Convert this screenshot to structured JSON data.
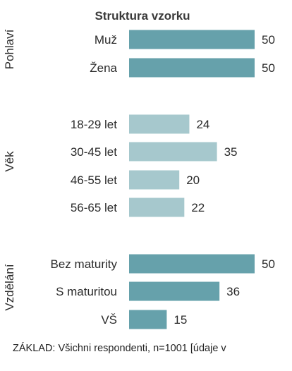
{
  "chart_data": {
    "type": "bar",
    "orientation": "horizontal",
    "title": "Struktura vzorku",
    "groups": [
      {
        "label": "Pohlaví",
        "color": "#66a1ab",
        "items": [
          {
            "category": "Muž",
            "value": 50
          },
          {
            "category": "Žena",
            "value": 50
          }
        ]
      },
      {
        "label": "Věk",
        "color": "#a6c8cd",
        "items": [
          {
            "category": "18-29 let",
            "value": 24
          },
          {
            "category": "30-45 let",
            "value": 35
          },
          {
            "category": "46-55 let",
            "value": 20
          },
          {
            "category": "56-65 let",
            "value": 22
          }
        ]
      },
      {
        "label": "Vzdělání",
        "color": "#66a1ab",
        "items": [
          {
            "category": "Bez maturity",
            "value": 50
          },
          {
            "category": "S maturitou",
            "value": 36
          },
          {
            "category": "VŠ",
            "value": 15
          }
        ]
      }
    ],
    "xlim": [
      0,
      50
    ],
    "grid": false,
    "legend": "none"
  },
  "footer": "ZÁKLAD: Všichni respondenti, n=1001 [údaje v"
}
